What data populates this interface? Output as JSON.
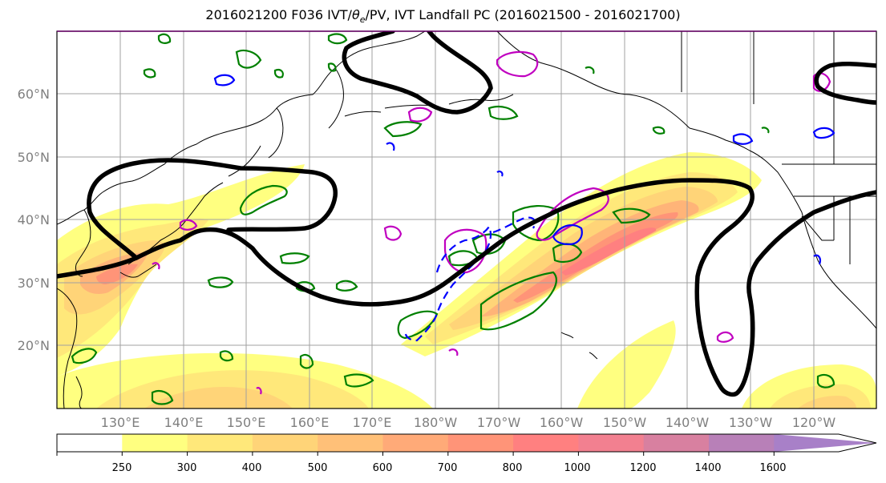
{
  "title": "2016021200 F036 IVT/θe/PV, IVT Landfall PC (2016021500 - 2016021700)",
  "title_parts": {
    "pre": "2016021200 F036 IVT/",
    "theta": "θ",
    "sub": "e",
    "post": "/PV, IVT Landfall PC (2016021500 - 2016021700)"
  },
  "map": {
    "lon_range": [
      120,
      250
    ],
    "lat_range": [
      10,
      70
    ],
    "latitude_labels": [
      {
        "lat": 60,
        "label": "60°N"
      },
      {
        "lat": 50,
        "label": "50°N"
      },
      {
        "lat": 40,
        "label": "40°N"
      },
      {
        "lat": 30,
        "label": "30°N"
      },
      {
        "lat": 20,
        "label": "20°N"
      }
    ],
    "longitude_labels": [
      {
        "lon": 130,
        "label": "130°E"
      },
      {
        "lon": 140,
        "label": "140°E"
      },
      {
        "lon": 150,
        "label": "150°E"
      },
      {
        "lon": 160,
        "label": "160°E"
      },
      {
        "lon": 170,
        "label": "170°E"
      },
      {
        "lon": 180,
        "label": "180°W"
      },
      {
        "lon": 190,
        "label": "170°W"
      },
      {
        "lon": 200,
        "label": "160°W"
      },
      {
        "lon": 210,
        "label": "150°W"
      },
      {
        "lon": 220,
        "label": "140°W"
      },
      {
        "lon": 230,
        "label": "130°W"
      },
      {
        "lon": 240,
        "label": "120°W"
      }
    ],
    "colors": {
      "ivt_fill": [
        "#ffffff",
        "#ffff80",
        "#ffe87a",
        "#ffd478",
        "#ffc078",
        "#ffaa78",
        "#ff9478",
        "#ff8080",
        "#f28090",
        "#d880a0",
        "#b880b8",
        "#a880c8"
      ],
      "landfall_pc": "#000000",
      "theta_e": "#008000",
      "pv_positive": "#c000c0",
      "pv_negative": "#0000ff",
      "coast": "#000000",
      "grid": "#a0a0a0"
    }
  },
  "colorbar": {
    "tick_labels": [
      "250",
      "300",
      "400",
      "500",
      "600",
      "700",
      "800",
      "1000",
      "1200",
      "1400",
      "1600"
    ],
    "colors": [
      "#ffffff",
      "#ffff80",
      "#ffe87a",
      "#ffd478",
      "#ffc078",
      "#ffaa78",
      "#ff9478",
      "#ff8080",
      "#f28090",
      "#d880a0",
      "#b880b8",
      "#a880c8"
    ]
  }
}
